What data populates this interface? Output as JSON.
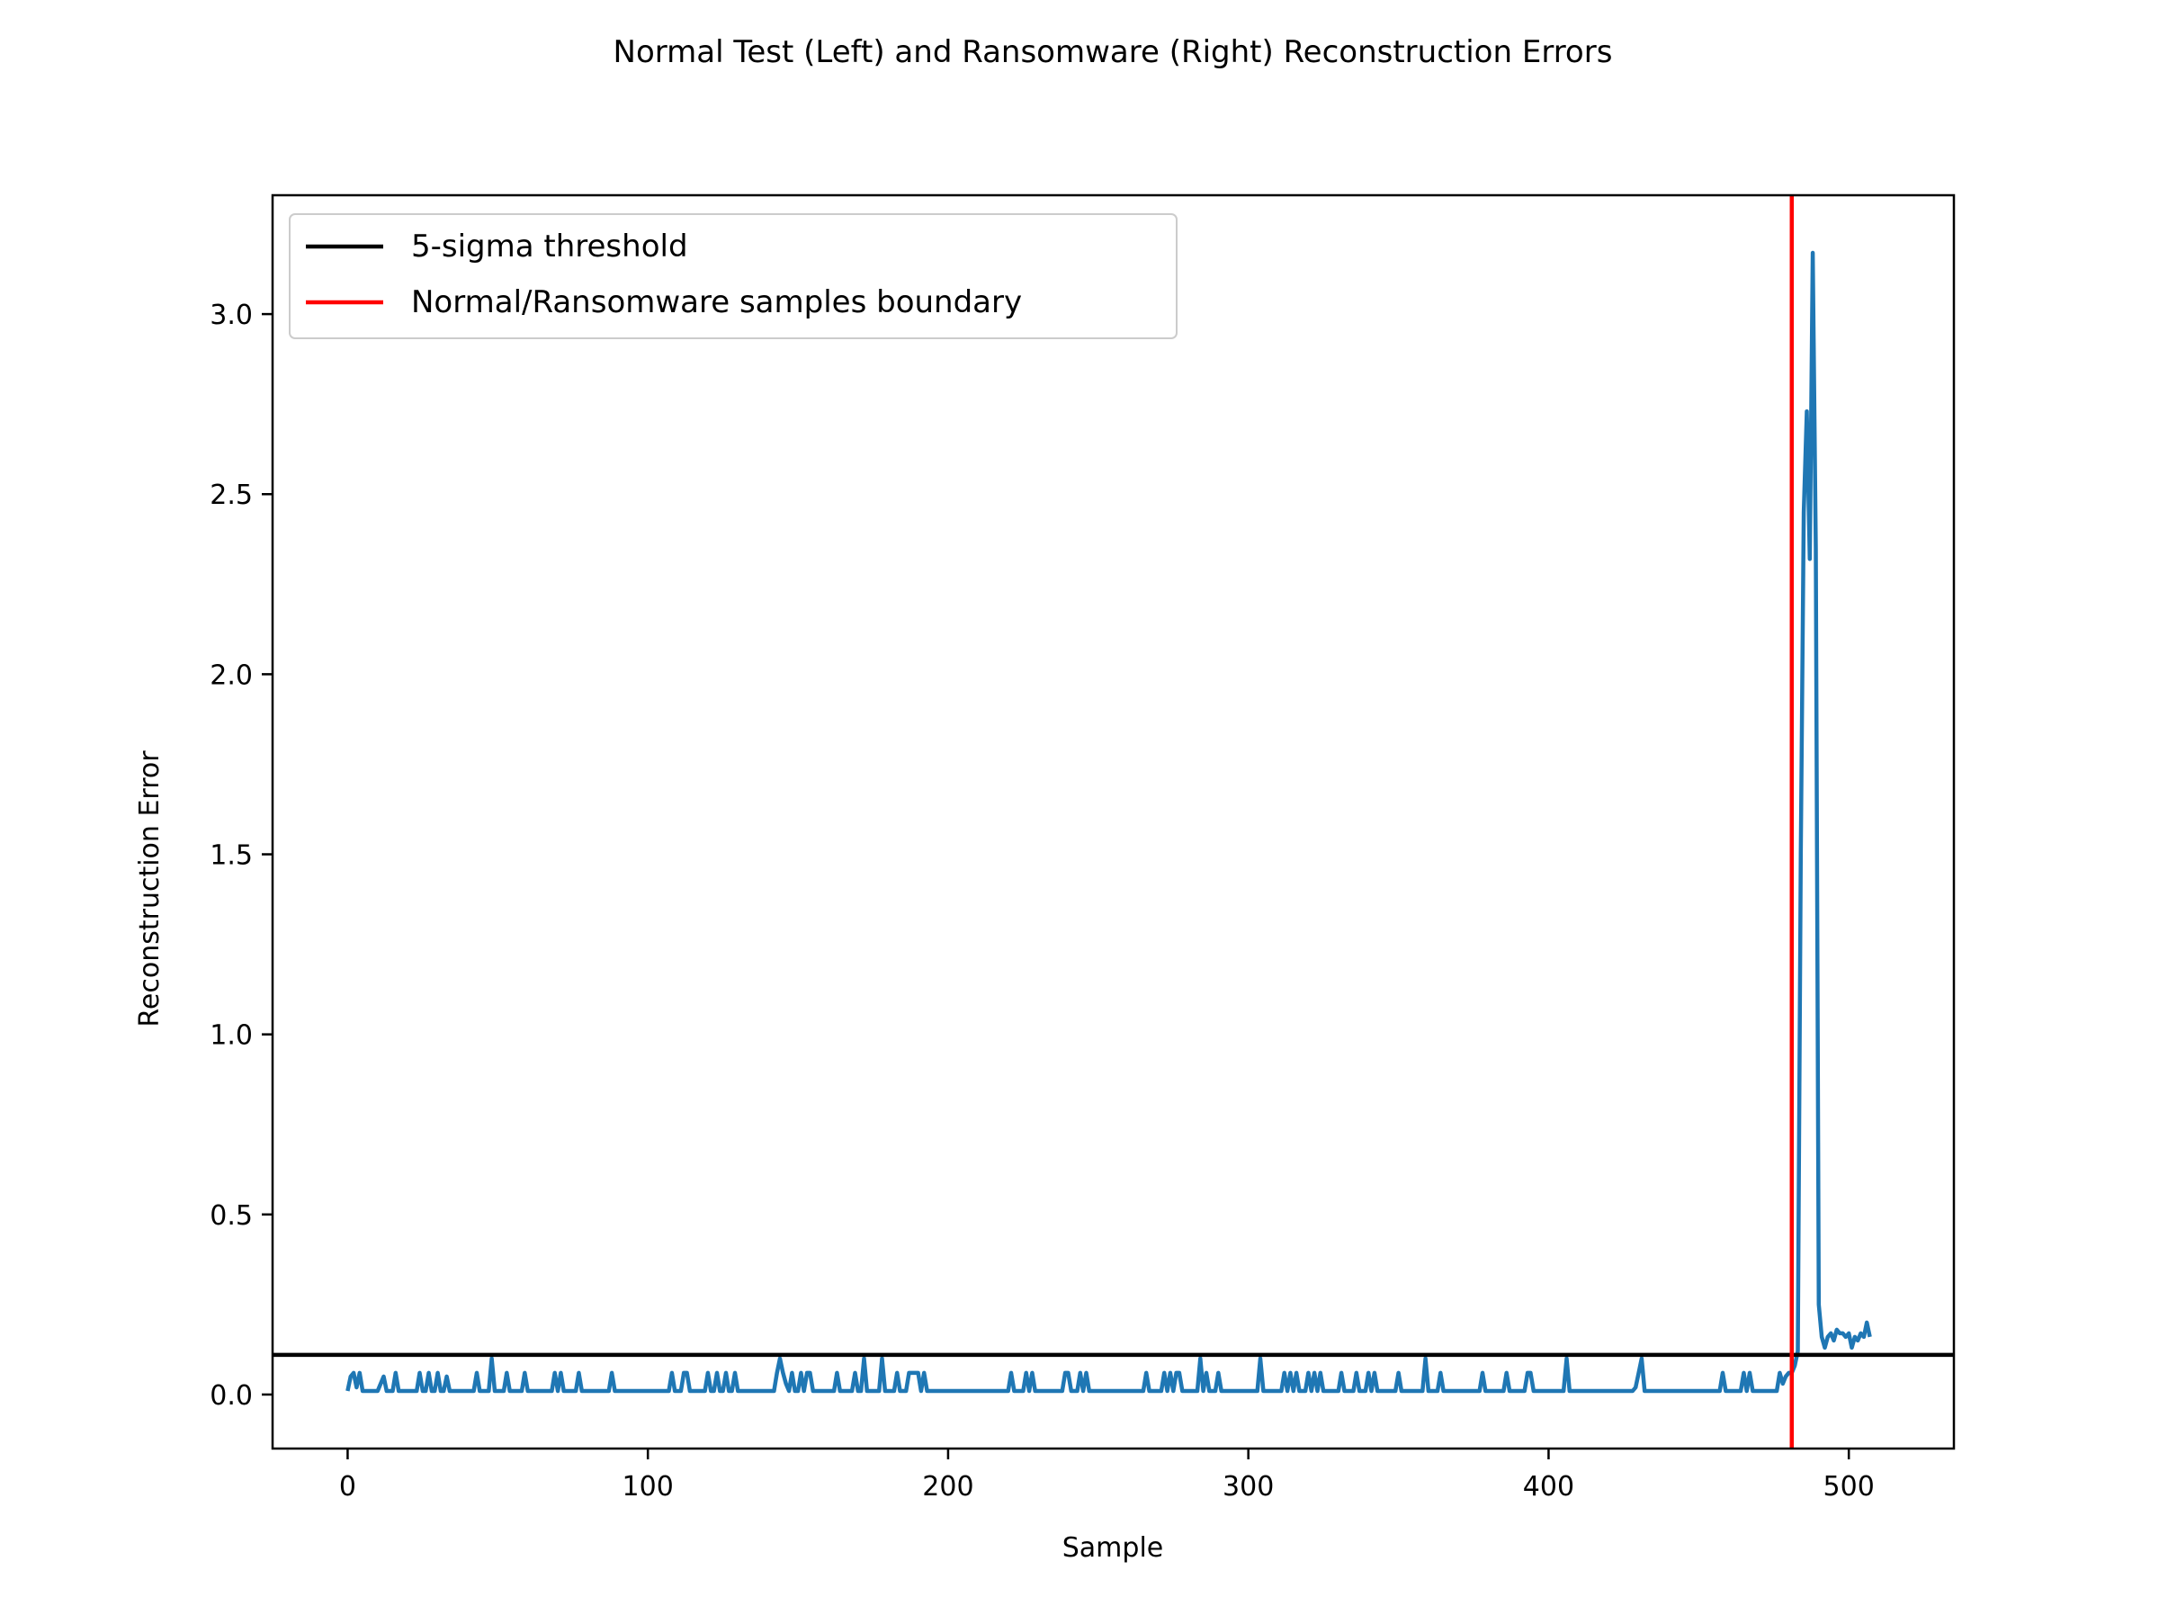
{
  "chart_data": {
    "type": "line",
    "title": "Normal Test (Left) and Ransomware (Right) Reconstruction Errors",
    "xlabel": "Sample",
    "ylabel": "Reconstruction Error",
    "xlim": [
      -25,
      535
    ],
    "ylim": [
      -0.15,
      3.33
    ],
    "xticks": [
      0,
      100,
      200,
      300,
      400,
      500
    ],
    "xtick_labels": [
      "0",
      "100",
      "200",
      "300",
      "400",
      "500"
    ],
    "yticks": [
      0.0,
      0.5,
      1.0,
      1.5,
      2.0,
      2.5,
      3.0
    ],
    "ytick_labels": [
      "0.0",
      "0.5",
      "1.0",
      "1.5",
      "2.0",
      "2.5",
      "3.0"
    ],
    "grid": false,
    "legend_position": "upper-left",
    "legend": [
      {
        "label": "5-sigma threshold",
        "color": "#000000"
      },
      {
        "label": "Normal/Ransomware samples boundary",
        "color": "#ff0000"
      }
    ],
    "threshold": {
      "y": 0.11,
      "color": "#000000"
    },
    "boundary": {
      "x": 481,
      "color": "#ff0000"
    },
    "series": [
      {
        "color": "#1f77b4",
        "points": [
          [
            0,
            0.01
          ],
          [
            1,
            0.05
          ],
          [
            2,
            0.06
          ],
          [
            3,
            0.02
          ],
          [
            4,
            0.06
          ],
          [
            5,
            0.01
          ],
          [
            10,
            0.01
          ],
          [
            12,
            0.05
          ],
          [
            13,
            0.01
          ],
          [
            15,
            0.01
          ],
          [
            16,
            0.06
          ],
          [
            17,
            0.01
          ],
          [
            23,
            0.01
          ],
          [
            24,
            0.06
          ],
          [
            25,
            0.01
          ],
          [
            26,
            0.01
          ],
          [
            27,
            0.06
          ],
          [
            28,
            0.01
          ],
          [
            29,
            0.01
          ],
          [
            30,
            0.06
          ],
          [
            31,
            0.01
          ],
          [
            32,
            0.01
          ],
          [
            33,
            0.05
          ],
          [
            34,
            0.01
          ],
          [
            42,
            0.01
          ],
          [
            43,
            0.06
          ],
          [
            44,
            0.01
          ],
          [
            47,
            0.01
          ],
          [
            48,
            0.1
          ],
          [
            49,
            0.01
          ],
          [
            52,
            0.01
          ],
          [
            53,
            0.06
          ],
          [
            54,
            0.01
          ],
          [
            58,
            0.01
          ],
          [
            59,
            0.06
          ],
          [
            60,
            0.01
          ],
          [
            68,
            0.01
          ],
          [
            69,
            0.06
          ],
          [
            70,
            0.01
          ],
          [
            71,
            0.06
          ],
          [
            72,
            0.01
          ],
          [
            76,
            0.01
          ],
          [
            77,
            0.06
          ],
          [
            78,
            0.01
          ],
          [
            87,
            0.01
          ],
          [
            88,
            0.06
          ],
          [
            89,
            0.01
          ],
          [
            107,
            0.01
          ],
          [
            108,
            0.06
          ],
          [
            109,
            0.01
          ],
          [
            111,
            0.01
          ],
          [
            112,
            0.06
          ],
          [
            113,
            0.06
          ],
          [
            114,
            0.01
          ],
          [
            119,
            0.01
          ],
          [
            120,
            0.06
          ],
          [
            121,
            0.01
          ],
          [
            122,
            0.01
          ],
          [
            123,
            0.06
          ],
          [
            124,
            0.01
          ],
          [
            125,
            0.01
          ],
          [
            126,
            0.06
          ],
          [
            127,
            0.01
          ],
          [
            128,
            0.01
          ],
          [
            129,
            0.06
          ],
          [
            130,
            0.01
          ],
          [
            142,
            0.01
          ],
          [
            143,
            0.06
          ],
          [
            144,
            0.1
          ],
          [
            145,
            0.06
          ],
          [
            146,
            0.03
          ],
          [
            147,
            0.01
          ],
          [
            148,
            0.06
          ],
          [
            149,
            0.01
          ],
          [
            150,
            0.01
          ],
          [
            151,
            0.06
          ],
          [
            152,
            0.01
          ],
          [
            153,
            0.06
          ],
          [
            154,
            0.06
          ],
          [
            155,
            0.01
          ],
          [
            162,
            0.01
          ],
          [
            163,
            0.06
          ],
          [
            164,
            0.01
          ],
          [
            168,
            0.01
          ],
          [
            169,
            0.06
          ],
          [
            170,
            0.01
          ],
          [
            171,
            0.01
          ],
          [
            172,
            0.1
          ],
          [
            173,
            0.01
          ],
          [
            177,
            0.01
          ],
          [
            178,
            0.1
          ],
          [
            179,
            0.01
          ],
          [
            182,
            0.01
          ],
          [
            183,
            0.06
          ],
          [
            184,
            0.01
          ],
          [
            186,
            0.01
          ],
          [
            187,
            0.06
          ],
          [
            188,
            0.06
          ],
          [
            189,
            0.06
          ],
          [
            190,
            0.06
          ],
          [
            191,
            0.01
          ],
          [
            192,
            0.06
          ],
          [
            193,
            0.01
          ],
          [
            220,
            0.01
          ],
          [
            221,
            0.06
          ],
          [
            222,
            0.01
          ],
          [
            225,
            0.01
          ],
          [
            226,
            0.06
          ],
          [
            227,
            0.01
          ],
          [
            228,
            0.06
          ],
          [
            229,
            0.01
          ],
          [
            238,
            0.01
          ],
          [
            239,
            0.06
          ],
          [
            240,
            0.06
          ],
          [
            241,
            0.01
          ],
          [
            243,
            0.01
          ],
          [
            244,
            0.06
          ],
          [
            245,
            0.01
          ],
          [
            246,
            0.06
          ],
          [
            247,
            0.01
          ],
          [
            265,
            0.01
          ],
          [
            266,
            0.06
          ],
          [
            267,
            0.01
          ],
          [
            271,
            0.01
          ],
          [
            272,
            0.06
          ],
          [
            273,
            0.01
          ],
          [
            274,
            0.06
          ],
          [
            275,
            0.01
          ],
          [
            276,
            0.06
          ],
          [
            277,
            0.06
          ],
          [
            278,
            0.01
          ],
          [
            283,
            0.01
          ],
          [
            284,
            0.1
          ],
          [
            285,
            0.01
          ],
          [
            286,
            0.06
          ],
          [
            287,
            0.01
          ],
          [
            289,
            0.01
          ],
          [
            290,
            0.06
          ],
          [
            291,
            0.01
          ],
          [
            303,
            0.01
          ],
          [
            304,
            0.1
          ],
          [
            305,
            0.01
          ],
          [
            311,
            0.01
          ],
          [
            312,
            0.06
          ],
          [
            313,
            0.01
          ],
          [
            314,
            0.06
          ],
          [
            315,
            0.01
          ],
          [
            316,
            0.06
          ],
          [
            317,
            0.01
          ],
          [
            319,
            0.01
          ],
          [
            320,
            0.06
          ],
          [
            321,
            0.01
          ],
          [
            322,
            0.06
          ],
          [
            323,
            0.01
          ],
          [
            324,
            0.06
          ],
          [
            325,
            0.01
          ],
          [
            330,
            0.01
          ],
          [
            331,
            0.06
          ],
          [
            332,
            0.01
          ],
          [
            335,
            0.01
          ],
          [
            336,
            0.06
          ],
          [
            337,
            0.01
          ],
          [
            339,
            0.01
          ],
          [
            340,
            0.06
          ],
          [
            341,
            0.01
          ],
          [
            342,
            0.06
          ],
          [
            343,
            0.01
          ],
          [
            349,
            0.01
          ],
          [
            350,
            0.06
          ],
          [
            351,
            0.01
          ],
          [
            358,
            0.01
          ],
          [
            359,
            0.1
          ],
          [
            360,
            0.01
          ],
          [
            363,
            0.01
          ],
          [
            364,
            0.06
          ],
          [
            365,
            0.01
          ],
          [
            377,
            0.01
          ],
          [
            378,
            0.06
          ],
          [
            379,
            0.01
          ],
          [
            385,
            0.01
          ],
          [
            386,
            0.06
          ],
          [
            387,
            0.01
          ],
          [
            392,
            0.01
          ],
          [
            393,
            0.06
          ],
          [
            394,
            0.06
          ],
          [
            395,
            0.01
          ],
          [
            405,
            0.01
          ],
          [
            406,
            0.1
          ],
          [
            407,
            0.01
          ],
          [
            428,
            0.01
          ],
          [
            429,
            0.02
          ],
          [
            430,
            0.06
          ],
          [
            431,
            0.1
          ],
          [
            432,
            0.01
          ],
          [
            457,
            0.01
          ],
          [
            458,
            0.06
          ],
          [
            459,
            0.01
          ],
          [
            464,
            0.01
          ],
          [
            465,
            0.06
          ],
          [
            466,
            0.01
          ],
          [
            467,
            0.06
          ],
          [
            468,
            0.01
          ],
          [
            476,
            0.01
          ],
          [
            477,
            0.06
          ],
          [
            478,
            0.03
          ],
          [
            479,
            0.05
          ],
          [
            480,
            0.06
          ],
          [
            481,
            0.06
          ],
          [
            482,
            0.08
          ],
          [
            483,
            0.12
          ],
          [
            484,
            1.5
          ],
          [
            485,
            2.45
          ],
          [
            486,
            2.73
          ],
          [
            487,
            2.32
          ],
          [
            488,
            3.17
          ],
          [
            489,
            2.35
          ],
          [
            490,
            0.25
          ],
          [
            491,
            0.16
          ],
          [
            492,
            0.13
          ],
          [
            493,
            0.16
          ],
          [
            494,
            0.17
          ],
          [
            495,
            0.15
          ],
          [
            496,
            0.18
          ],
          [
            497,
            0.17
          ],
          [
            498,
            0.17
          ],
          [
            499,
            0.16
          ],
          [
            500,
            0.17
          ],
          [
            501,
            0.13
          ],
          [
            502,
            0.16
          ],
          [
            503,
            0.15
          ],
          [
            504,
            0.17
          ],
          [
            505,
            0.16
          ],
          [
            506,
            0.2
          ],
          [
            507,
            0.16
          ]
        ]
      }
    ]
  }
}
